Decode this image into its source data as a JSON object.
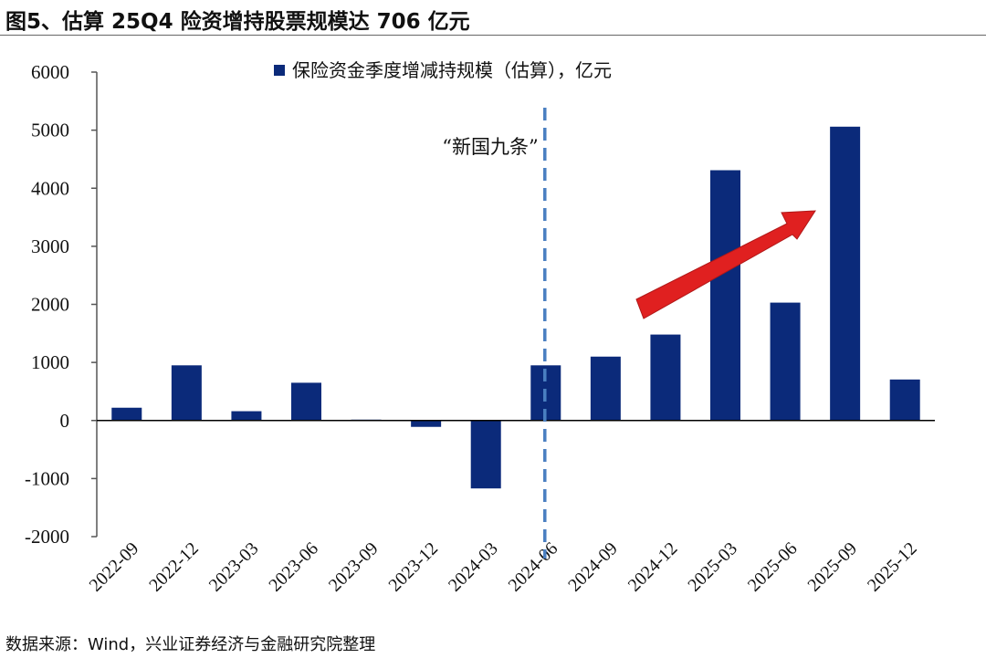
{
  "title": "图5、估算 25Q4 险资增持股票规模达 706 亿元",
  "source": "数据来源：Wind，兴业证券经济与金融研究院整理",
  "chart_data": {
    "type": "bar",
    "title": "",
    "xlabel": "",
    "ylabel": "",
    "ylim": [
      -2000,
      6000
    ],
    "yticks": [
      -2000,
      -1000,
      0,
      1000,
      2000,
      3000,
      4000,
      5000,
      6000
    ],
    "grid": false,
    "legend_placement": "top-center",
    "categories": [
      "2022-09",
      "2022-12",
      "2023-03",
      "2023-06",
      "2023-09",
      "2023-12",
      "2024-03",
      "2024-06",
      "2024-09",
      "2024-12",
      "2025-03",
      "2025-06",
      "2025-09",
      "2025-12"
    ],
    "series": [
      {
        "name": "保险资金季度增减持规模（估算），亿元",
        "color": "#0b2a7a",
        "values": [
          220,
          950,
          160,
          650,
          15,
          -110,
          -1170,
          950,
          1100,
          1480,
          4310,
          2030,
          5060,
          706
        ]
      }
    ],
    "annotations": {
      "policy_label": "“新国九条”",
      "policy_category": "2024-06",
      "dashed_line_color": "#4a7fc1",
      "trend_arrow_color": "#e02020"
    }
  }
}
